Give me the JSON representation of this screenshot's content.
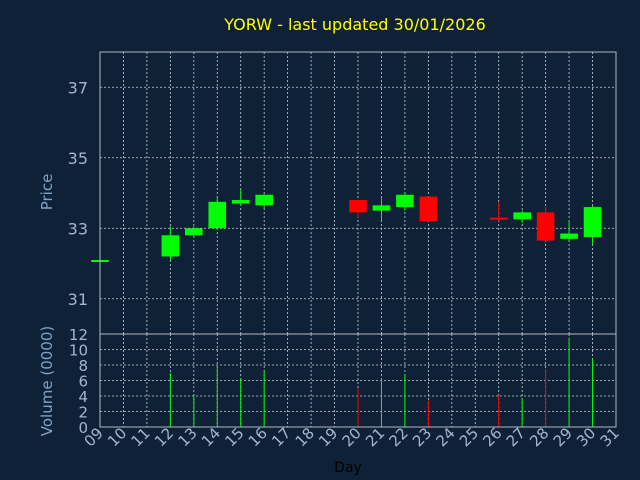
{
  "chart_data": {
    "type": "candlestick",
    "title": "YORW - last updated 30/01/2026",
    "xlabel": "Day",
    "ylabel_price": "Price",
    "ylabel_volume": "Volume (0000)",
    "x_ticks": [
      "09",
      "10",
      "11",
      "12",
      "13",
      "14",
      "15",
      "16",
      "17",
      "18",
      "19",
      "20",
      "21",
      "22",
      "23",
      "24",
      "25",
      "26",
      "27",
      "28",
      "29",
      "30",
      "31"
    ],
    "price_ylim": [
      30,
      38
    ],
    "price_ticks": [
      "31",
      "33",
      "35",
      "37"
    ],
    "volume_ylim": [
      0,
      12
    ],
    "volume_ticks": [
      "0",
      "2",
      "4",
      "6",
      "8",
      "10",
      "12"
    ],
    "grid": true,
    "candles": [
      {
        "day": 9,
        "open": 32.1,
        "high": 32.1,
        "low": 32.1,
        "close": 32.1,
        "volume": 0
      },
      {
        "day": 12,
        "open": 32.2,
        "high": 33.05,
        "low": 32.1,
        "close": 32.8,
        "volume": 7.0
      },
      {
        "day": 13,
        "open": 32.8,
        "high": 33.05,
        "low": 32.75,
        "close": 33.0,
        "volume": 4.2
      },
      {
        "day": 14,
        "open": 33.0,
        "high": 33.9,
        "low": 32.95,
        "close": 33.75,
        "volume": 7.9
      },
      {
        "day": 15,
        "open": 33.7,
        "high": 34.1,
        "low": 33.65,
        "close": 33.8,
        "volume": 6.3
      },
      {
        "day": 16,
        "open": 33.65,
        "high": 33.95,
        "low": 33.55,
        "close": 33.95,
        "volume": 7.2
      },
      {
        "day": 20,
        "open": 33.8,
        "high": 33.8,
        "low": 33.3,
        "close": 33.45,
        "volume": 5.0
      },
      {
        "day": 21,
        "open": 33.5,
        "high": 33.85,
        "low": 33.2,
        "close": 33.65,
        "volume": 6.2
      },
      {
        "day": 22,
        "open": 33.6,
        "high": 34.0,
        "low": 33.5,
        "close": 33.95,
        "volume": 6.8
      },
      {
        "day": 23,
        "open": 33.9,
        "high": 33.9,
        "low": 33.2,
        "close": 33.2,
        "volume": 3.4
      },
      {
        "day": 26,
        "open": 33.3,
        "high": 33.75,
        "low": 33.2,
        "close": 33.25,
        "volume": 4.1
      },
      {
        "day": 27,
        "open": 33.25,
        "high": 33.5,
        "low": 33.15,
        "close": 33.45,
        "volume": 3.7
      },
      {
        "day": 28,
        "open": 33.45,
        "high": 33.6,
        "low": 32.6,
        "close": 32.65,
        "volume": 7.5
      },
      {
        "day": 29,
        "open": 32.7,
        "high": 33.2,
        "low": 32.65,
        "close": 32.85,
        "volume": 11.5
      },
      {
        "day": 30,
        "open": 32.75,
        "high": 33.65,
        "low": 32.55,
        "close": 33.6,
        "volume": 8.7
      }
    ],
    "colors": {
      "background": "#0f2136",
      "frame": "#b0b8c0",
      "grid": "#c8d0d8",
      "up": "#00ff00",
      "down": "#ff0000",
      "title": "#ffff00",
      "label": "#7fa4c8",
      "tick": "#9fb8d0",
      "xlabel": "#000000"
    }
  }
}
